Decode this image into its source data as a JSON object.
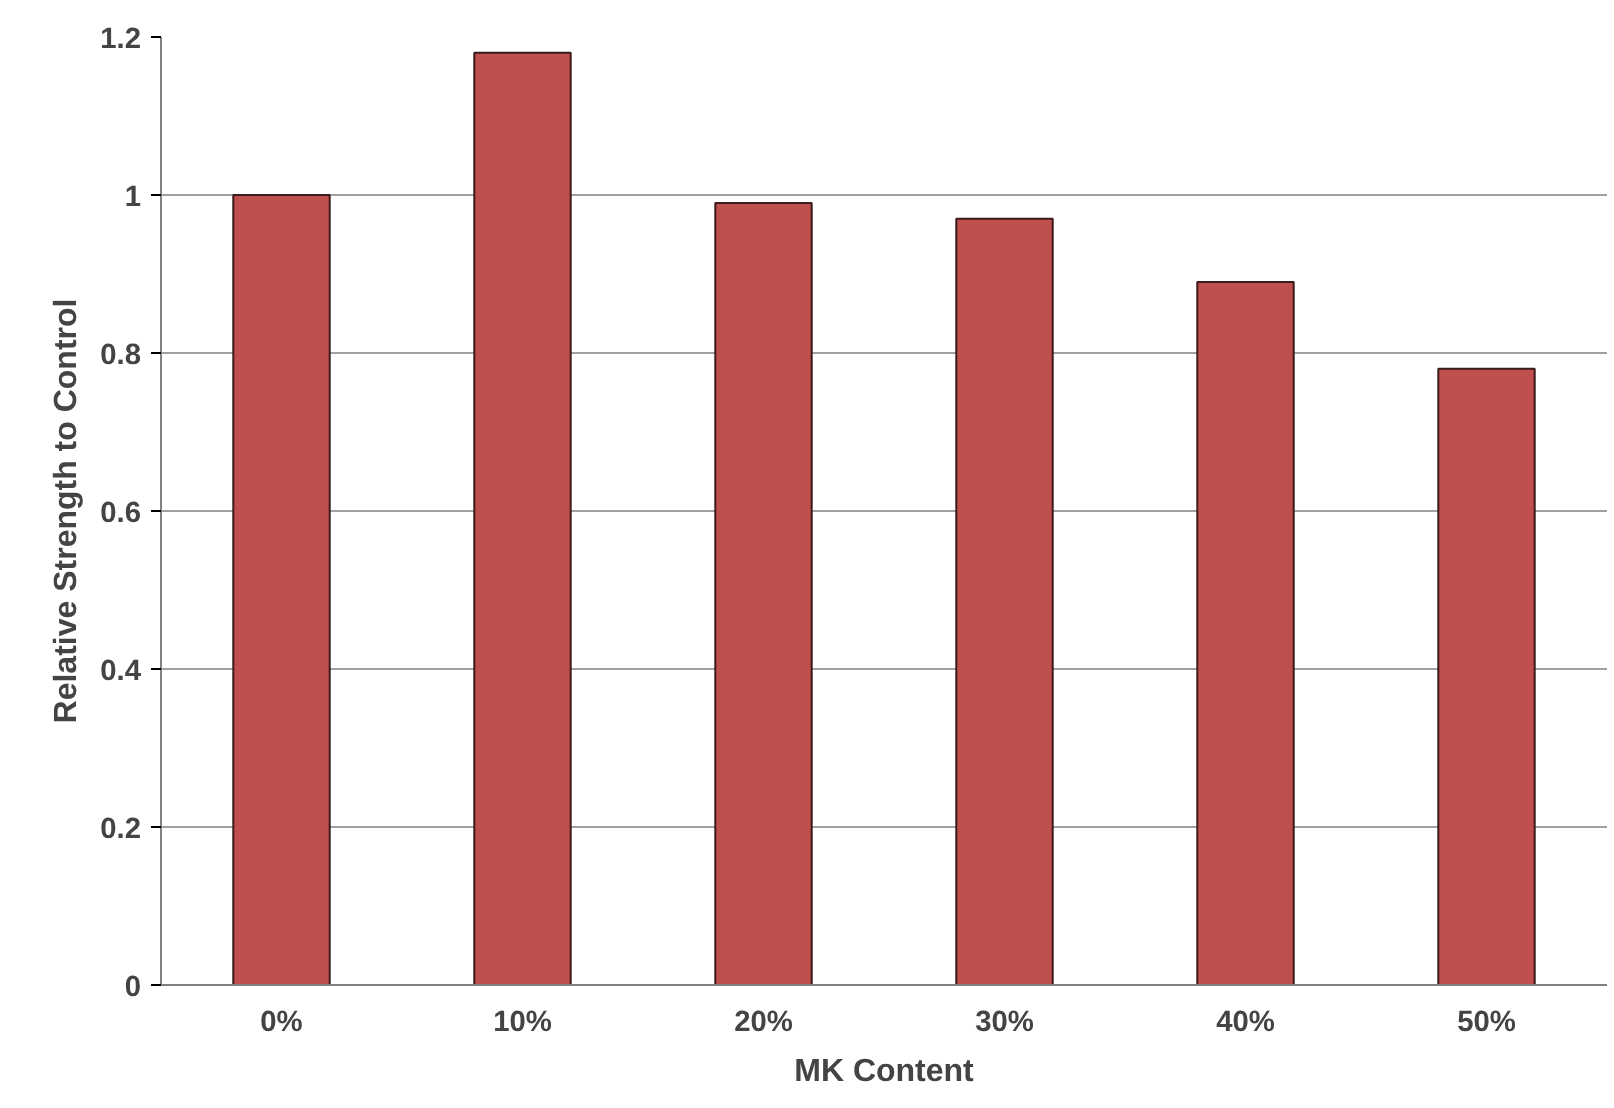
{
  "chart_data": {
    "type": "bar",
    "xlabel": "MK Content",
    "ylabel": "Relative Strength to Control",
    "categories": [
      "0%",
      "10%",
      "20%",
      "30%",
      "40%",
      "50%"
    ],
    "values": [
      1.0,
      1.18,
      0.99,
      0.97,
      0.89,
      0.78
    ],
    "color": "#c0504d",
    "ylim": [
      0,
      1.2
    ],
    "yticks": [
      0,
      0.2,
      0.4,
      0.6,
      0.8,
      1,
      1.2
    ],
    "grid": "y"
  }
}
